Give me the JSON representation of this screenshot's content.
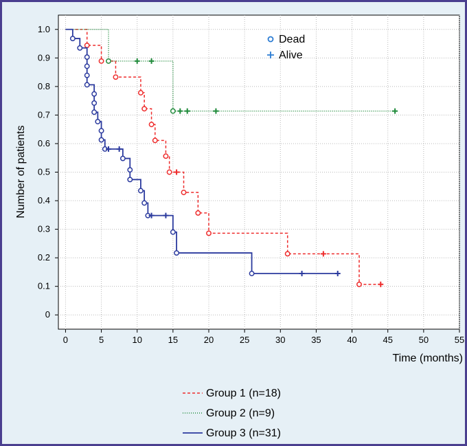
{
  "chart_data": {
    "type": "line",
    "subtype": "kaplan-meier step",
    "title": "",
    "xlabel": "Time (months)",
    "ylabel": "Number of patients",
    "xlim": [
      -1,
      55
    ],
    "ylim": [
      -0.05,
      1.05
    ],
    "x_ticks": [
      0,
      5,
      10,
      15,
      20,
      25,
      30,
      35,
      40,
      45,
      50,
      55
    ],
    "y_ticks": [
      0,
      0.1,
      0.2,
      0.3,
      0.4,
      0.5,
      0.6,
      0.7,
      0.8,
      0.9,
      1.0
    ],
    "y_tick_labels": [
      "0",
      "0.1",
      "0.2",
      "0.3",
      "0.4",
      "0.5",
      "0.6",
      "0.7",
      "0.8",
      "0.9",
      "1.0"
    ],
    "grid": true,
    "marker_legend": {
      "position": "top-center",
      "items": [
        {
          "marker": "circle",
          "label": "Dead"
        },
        {
          "marker": "plus",
          "label": "Alive"
        }
      ]
    },
    "legend_position": "bottom-center",
    "series": [
      {
        "name": "Group 1 (n=18)",
        "color": "#ee2c2c",
        "style": "dashed",
        "steps": [
          [
            3,
            0.944
          ],
          [
            5,
            0.889
          ],
          [
            7,
            0.833
          ],
          [
            10.5,
            0.778
          ],
          [
            11,
            0.722
          ],
          [
            12,
            0.667
          ],
          [
            12.5,
            0.611
          ],
          [
            14,
            0.556
          ],
          [
            14.5,
            0.5
          ],
          [
            16.5,
            0.429
          ],
          [
            18.5,
            0.357
          ],
          [
            20,
            0.286
          ],
          [
            31,
            0.214
          ],
          [
            41,
            0.107
          ]
        ],
        "end_x": 44,
        "dead": [
          [
            3,
            0.944
          ],
          [
            5,
            0.889
          ],
          [
            7,
            0.833
          ],
          [
            10.5,
            0.778
          ],
          [
            11,
            0.722
          ],
          [
            12,
            0.667
          ],
          [
            12.5,
            0.611
          ],
          [
            14,
            0.556
          ],
          [
            14.5,
            0.5
          ],
          [
            16.5,
            0.429
          ],
          [
            18.5,
            0.357
          ],
          [
            20,
            0.286
          ],
          [
            31,
            0.214
          ],
          [
            41,
            0.107
          ]
        ],
        "alive": [
          [
            15.5,
            0.5
          ],
          [
            36,
            0.214
          ],
          [
            44,
            0.107
          ]
        ]
      },
      {
        "name": "Group 2 (n=9)",
        "color": "#1f8a3a",
        "style": "dotted",
        "steps": [
          [
            6,
            0.889
          ],
          [
            15,
            0.714
          ]
        ],
        "end_x": 46,
        "dead": [
          [
            6,
            0.889
          ],
          [
            15,
            0.714
          ]
        ],
        "alive": [
          [
            10,
            0.889
          ],
          [
            12,
            0.889
          ],
          [
            16,
            0.714
          ],
          [
            17,
            0.714
          ],
          [
            21,
            0.714
          ],
          [
            46,
            0.714
          ]
        ]
      },
      {
        "name": "Group 3 (n=31)",
        "color": "#2b3a9e",
        "style": "solid",
        "steps": [
          [
            1,
            0.968
          ],
          [
            2,
            0.935
          ],
          [
            3,
            0.903
          ],
          [
            3,
            0.871
          ],
          [
            3,
            0.839
          ],
          [
            3,
            0.806
          ],
          [
            4,
            0.774
          ],
          [
            4,
            0.742
          ],
          [
            4,
            0.71
          ],
          [
            4.5,
            0.677
          ],
          [
            5,
            0.645
          ],
          [
            5,
            0.613
          ],
          [
            5.5,
            0.581
          ],
          [
            8,
            0.548
          ],
          [
            9,
            0.508
          ],
          [
            9,
            0.474
          ],
          [
            10.5,
            0.435
          ],
          [
            11,
            0.392
          ],
          [
            11.5,
            0.348
          ],
          [
            15,
            0.29
          ],
          [
            15.5,
            0.217
          ],
          [
            26,
            0.145
          ]
        ],
        "end_x": 38,
        "dead": [
          [
            1,
            0.968
          ],
          [
            2,
            0.935
          ],
          [
            3,
            0.903
          ],
          [
            3,
            0.871
          ],
          [
            3,
            0.839
          ],
          [
            3,
            0.806
          ],
          [
            4,
            0.774
          ],
          [
            4,
            0.742
          ],
          [
            4,
            0.71
          ],
          [
            4.5,
            0.677
          ],
          [
            5,
            0.645
          ],
          [
            5,
            0.613
          ],
          [
            5.5,
            0.581
          ],
          [
            8,
            0.548
          ],
          [
            9,
            0.508
          ],
          [
            9,
            0.474
          ],
          [
            10.5,
            0.435
          ],
          [
            11,
            0.392
          ],
          [
            11.5,
            0.348
          ],
          [
            15,
            0.29
          ],
          [
            15.5,
            0.217
          ],
          [
            26,
            0.145
          ]
        ],
        "alive": [
          [
            6,
            0.581
          ],
          [
            7.5,
            0.581
          ],
          [
            12,
            0.348
          ],
          [
            14,
            0.348
          ],
          [
            33,
            0.145
          ],
          [
            38,
            0.145
          ]
        ]
      }
    ]
  }
}
